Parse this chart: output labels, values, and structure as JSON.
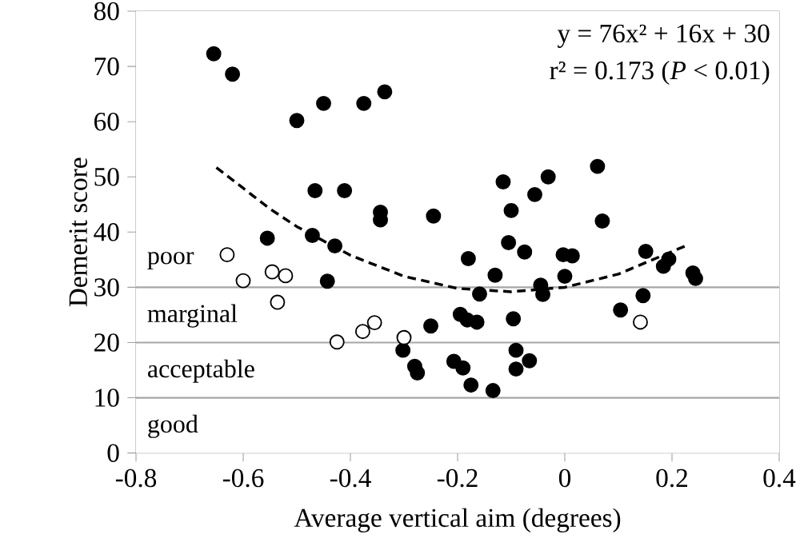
{
  "chart_data": {
    "type": "scatter",
    "xlabel": "Average vertical aim (degrees)",
    "ylabel": "Demerit score",
    "xlim": [
      -0.8,
      0.4
    ],
    "xticks": [
      -0.8,
      -0.6,
      -0.4,
      -0.2,
      0,
      0.2,
      0.4
    ],
    "ylim": [
      0,
      80
    ],
    "yticks": [
      0,
      10,
      20,
      30,
      40,
      50,
      60,
      70,
      80
    ],
    "marker": "circle",
    "series": [
      {
        "type": "scatter",
        "color": "#000000",
        "x": [
          -0.655,
          -0.62,
          -0.5,
          -0.45,
          -0.375,
          -0.336,
          -0.466,
          -0.411,
          -0.344,
          -0.344,
          -0.245,
          -0.555,
          -0.471,
          -0.429,
          -0.443,
          -0.25,
          -0.302,
          -0.28,
          -0.275,
          -0.18,
          -0.105,
          -0.075,
          -0.003,
          0.014,
          -0.13,
          0.0,
          -0.045,
          -0.041,
          -0.159,
          -0.195,
          -0.182,
          -0.164,
          -0.096,
          -0.091,
          -0.066,
          -0.091,
          -0.207,
          -0.19,
          -0.175,
          -0.134,
          0.151,
          0.194,
          0.184,
          0.239,
          0.244,
          0.146,
          0.104,
          -0.115,
          -0.1,
          -0.056,
          -0.031,
          0.061,
          0.07
        ],
        "values": [
          72.3,
          68.6,
          60.2,
          63.3,
          63.3,
          65.4,
          47.5,
          47.5,
          43.6,
          42.2,
          42.9,
          38.9,
          39.4,
          37.5,
          31.1,
          23.0,
          18.6,
          15.7,
          14.5,
          35.2,
          38.1,
          36.4,
          35.9,
          35.7,
          32.2,
          32.0,
          30.4,
          28.7,
          28.8,
          25.1,
          24.1,
          23.7,
          24.3,
          18.6,
          16.7,
          15.2,
          16.6,
          15.4,
          12.3,
          11.3,
          36.5,
          35.1,
          33.8,
          32.6,
          31.6,
          28.5,
          25.9,
          49.1,
          43.9,
          46.8,
          50.0,
          51.9,
          42.0
        ]
      },
      {
        "type": "scatter",
        "color": "#ffffff",
        "x": [
          -0.63,
          -0.6,
          -0.546,
          -0.521,
          -0.536,
          -0.425,
          -0.377,
          -0.355,
          -0.3,
          0.141
        ],
        "values": [
          35.9,
          31.2,
          32.8,
          32.1,
          27.3,
          20.1,
          22.0,
          23.6,
          20.9,
          23.7
        ]
      },
      {
        "type": "line",
        "color": "#000000",
        "line_style": "dashed",
        "marker": "none",
        "x": [
          -0.65,
          -0.55,
          -0.5,
          -0.4,
          -0.3,
          -0.2,
          -0.1,
          0,
          0.1,
          0.23
        ],
        "values": [
          51.7,
          44.2,
          41.0,
          35.8,
          32.0,
          29.8,
          29.2,
          30.0,
          32.4,
          37.7
        ]
      }
    ],
    "ref_lines": [
      {
        "axis": "y",
        "value": 10,
        "color": "#a6a6a6"
      },
      {
        "axis": "y",
        "value": 20,
        "color": "#a6a6a6"
      },
      {
        "axis": "y",
        "value": 30,
        "color": "#a6a6a6"
      }
    ],
    "bands": [
      {
        "axis": "y",
        "from": 30,
        "to": 80,
        "label": "poor",
        "color": "#ffffff"
      },
      {
        "axis": "y",
        "from": 20,
        "to": 30,
        "label": "marginal",
        "color": "#ffffff"
      },
      {
        "axis": "y",
        "from": 10,
        "to": 20,
        "label": "acceptable",
        "color": "#ffffff"
      },
      {
        "axis": "y",
        "from": 0,
        "to": 10,
        "label": "good",
        "color": "#ffffff"
      }
    ],
    "annotations": [
      "y = 76x² + 16x + 30",
      "r² = 0.173 (*P* < 0.01)"
    ]
  }
}
